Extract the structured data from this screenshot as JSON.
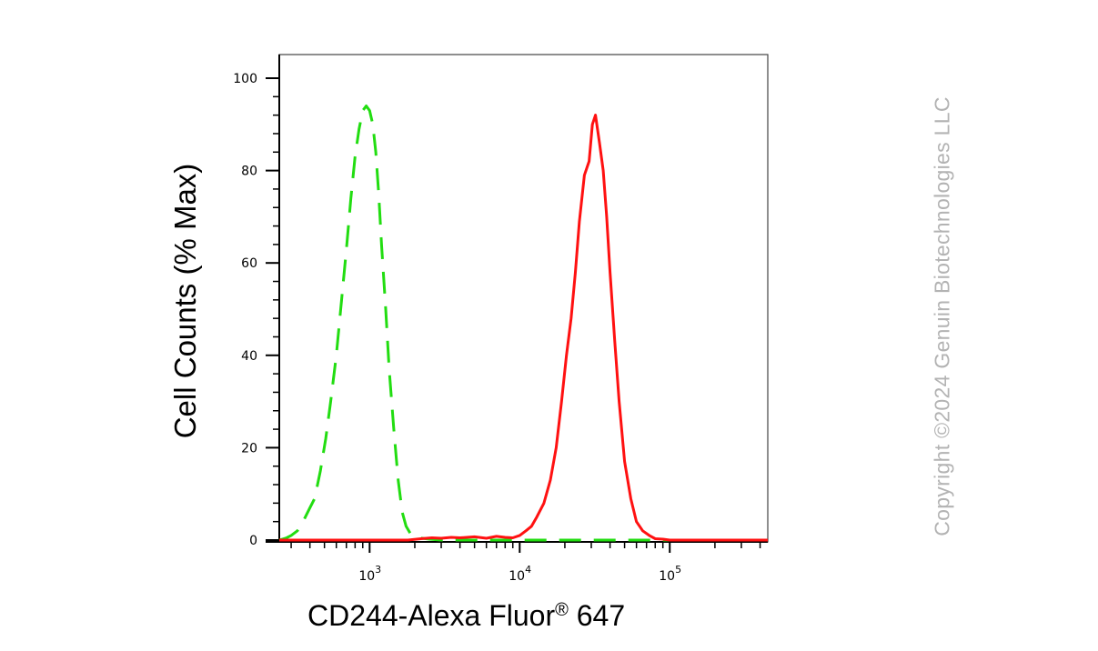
{
  "chart_data": {
    "type": "line",
    "title": "",
    "xlabel": "CD244-Alexa Fluor",
    "xlabel_superscript": "®",
    "xlabel_suffix": " 647",
    "ylabel": "Cell Counts (% Max)",
    "xscale": "log",
    "xlim": [
      250,
      450000
    ],
    "ylim": [
      0,
      105
    ],
    "y_ticks": [
      0,
      20,
      40,
      60,
      80,
      100
    ],
    "x_ticks": [
      {
        "value": 1000,
        "base": "10",
        "exp": "3"
      },
      {
        "value": 10000,
        "base": "10",
        "exp": "4"
      },
      {
        "value": 100000,
        "base": "10",
        "exp": "5"
      }
    ],
    "grid": false,
    "legend": "none",
    "series": [
      {
        "color": "#22dd11",
        "style": "dashed",
        "x": [
          250,
          280,
          300,
          330,
          360,
          400,
          430,
          470,
          510,
          550,
          600,
          650,
          700,
          750,
          800,
          850,
          900,
          950,
          1000,
          1050,
          1100,
          1150,
          1200,
          1280,
          1350,
          1450,
          1550,
          1650,
          1750,
          1900,
          2100,
          2500,
          3000,
          5000,
          10000,
          20000,
          50000,
          100000,
          200000,
          450000
        ],
        "y": [
          0,
          0.5,
          1,
          2,
          4,
          7,
          9,
          15,
          22,
          30,
          40,
          52,
          63,
          74,
          83,
          89,
          93,
          94,
          93,
          90,
          84,
          75,
          64,
          50,
          37,
          24,
          13,
          6,
          3,
          1,
          0.5,
          0.2,
          0,
          0,
          0,
          0,
          0,
          0,
          0,
          0
        ]
      },
      {
        "color": "#ff1111",
        "style": "solid",
        "x": [
          250,
          1000,
          1800,
          2200,
          2600,
          3000,
          3500,
          4000,
          5000,
          6000,
          7000,
          8000,
          9000,
          10000,
          11000,
          12000,
          13000,
          14500,
          16000,
          17500,
          19000,
          20500,
          22000,
          23500,
          25000,
          27000,
          29000,
          30500,
          32000,
          34000,
          36000,
          38000,
          40000,
          43000,
          46000,
          50000,
          55000,
          60000,
          66000,
          73000,
          80000,
          90000,
          100000,
          200000,
          450000
        ],
        "y": [
          0,
          0,
          0,
          0.3,
          0.5,
          0.4,
          0.6,
          0.5,
          0.7,
          0.4,
          0.8,
          0.6,
          0.5,
          1,
          2,
          3,
          5,
          8,
          13,
          20,
          30,
          40,
          48,
          58,
          69,
          79,
          82,
          90,
          92,
          86,
          80,
          70,
          58,
          43,
          30,
          17,
          9,
          4,
          2,
          1,
          0.3,
          0.2,
          0,
          0,
          0
        ]
      }
    ]
  },
  "watermark": "Copyright ©2024 Genuin Biotechnologies LLC"
}
